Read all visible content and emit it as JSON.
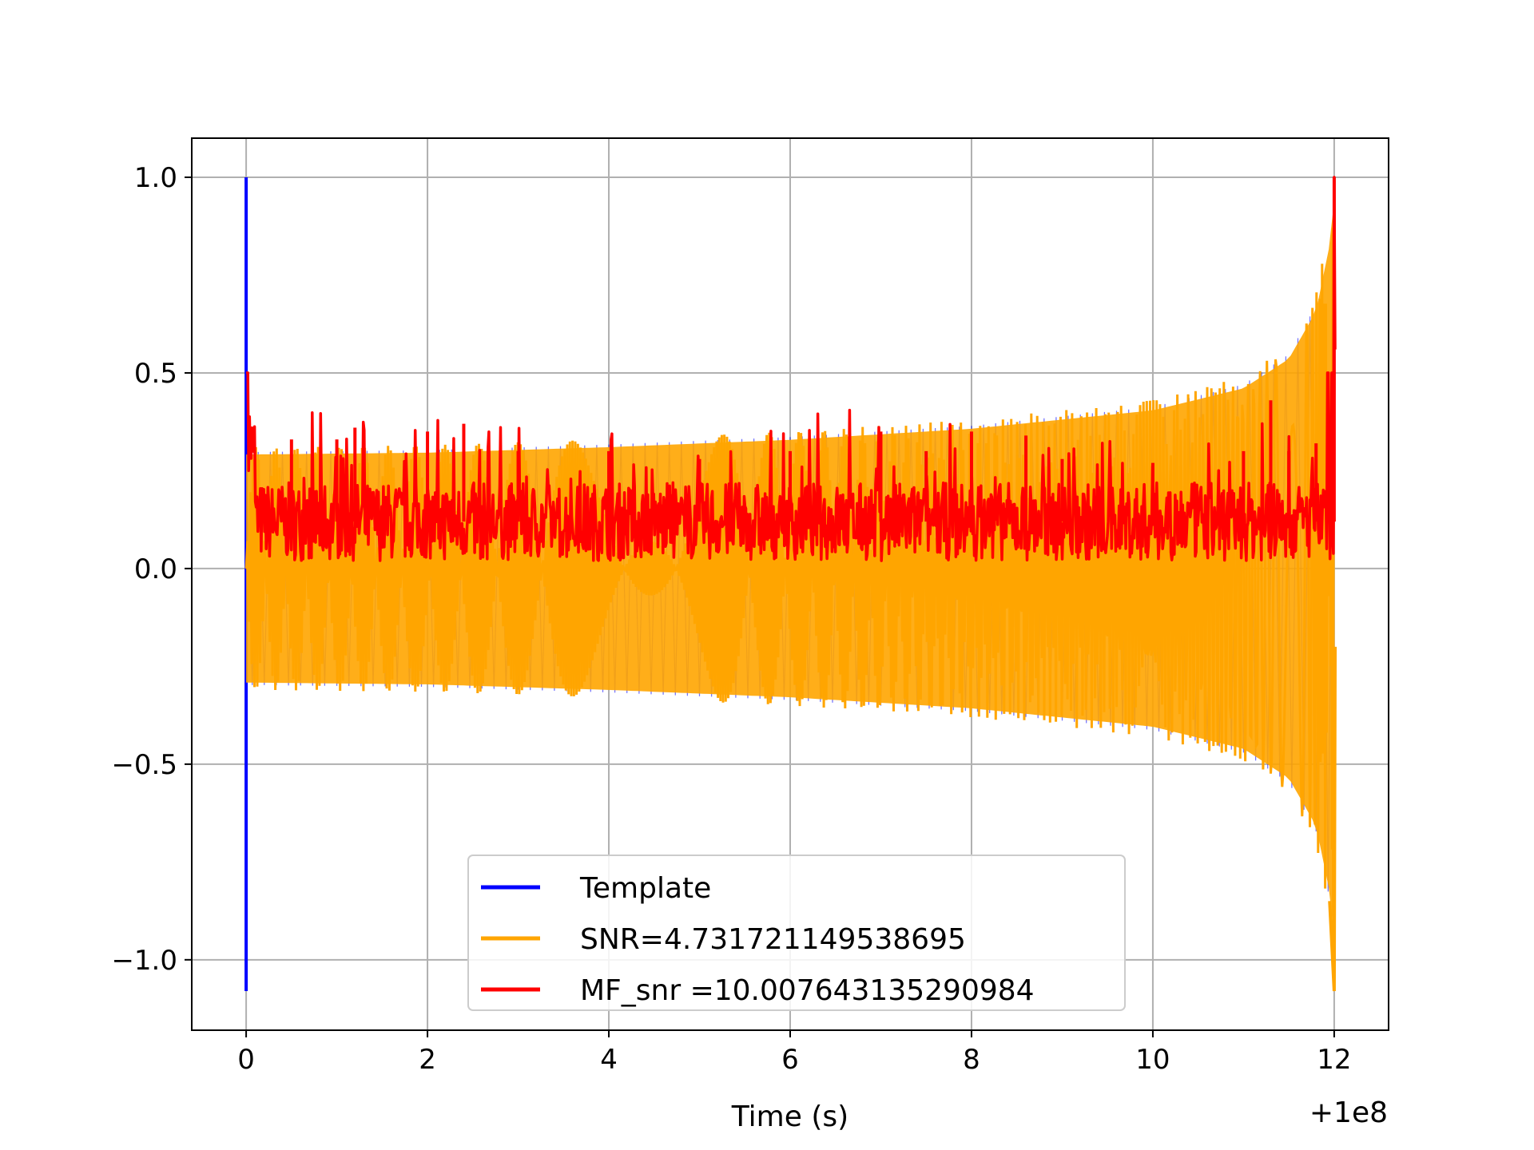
{
  "chart_data": {
    "type": "line",
    "title": "",
    "xlabel": "Time (s)",
    "ylabel": "",
    "x_offset_label": "+1e8",
    "xlim": [
      -0.6,
      12.6
    ],
    "ylim": [
      -1.18,
      1.1
    ],
    "xticks": [
      0,
      2,
      4,
      6,
      8,
      10,
      12
    ],
    "xtick_labels": [
      "0",
      "2",
      "4",
      "6",
      "8",
      "10",
      "12"
    ],
    "yticks": [
      1.0,
      0.5,
      0.0,
      -0.5,
      -1.0
    ],
    "ytick_labels": [
      "1.0",
      "0.5",
      "0.0",
      "−0.5",
      "−1.0"
    ],
    "grid": true,
    "legend_position": "lower center",
    "series": [
      {
        "name": "Template",
        "color": "#0000ff",
        "x": [
          0,
          0,
          0,
          0
        ],
        "y": [
          0,
          1.0,
          -1.08,
          0
        ]
      },
      {
        "name": "SNR=4.731721149538695",
        "color": "#ffa500",
        "kind": "chirp",
        "x_start": 0,
        "x_end": 12,
        "envelope_x": [
          0,
          2,
          4,
          6,
          8,
          10,
          11,
          11.5,
          11.8,
          11.95,
          12
        ],
        "envelope_y": [
          0.31,
          0.315,
          0.33,
          0.35,
          0.38,
          0.43,
          0.49,
          0.57,
          0.7,
          0.88,
          1.0
        ],
        "negative_tip": -1.08
      },
      {
        "name": "MF_snr =10.007643135290984",
        "color": "#ff0000",
        "x": [
          0,
          0.05,
          0.1,
          0.2,
          0.5,
          1.0,
          1.2,
          2.0,
          2.4,
          3.0,
          4.0,
          5.0,
          6.0,
          7.0,
          7.5,
          8.0,
          8.6,
          9.0,
          10.0,
          11.0,
          11.3,
          11.5,
          11.8,
          12.0
        ],
        "y": [
          0.5,
          0.4,
          0.25,
          0.12,
          0.33,
          0.33,
          0.36,
          0.35,
          0.37,
          0.3,
          0.3,
          0.28,
          0.3,
          0.35,
          0.3,
          0.35,
          0.34,
          0.28,
          0.27,
          0.3,
          0.43,
          0.3,
          0.32,
          1.0
        ],
        "baseline": 0.12,
        "noise_min": 0.0
      }
    ]
  }
}
